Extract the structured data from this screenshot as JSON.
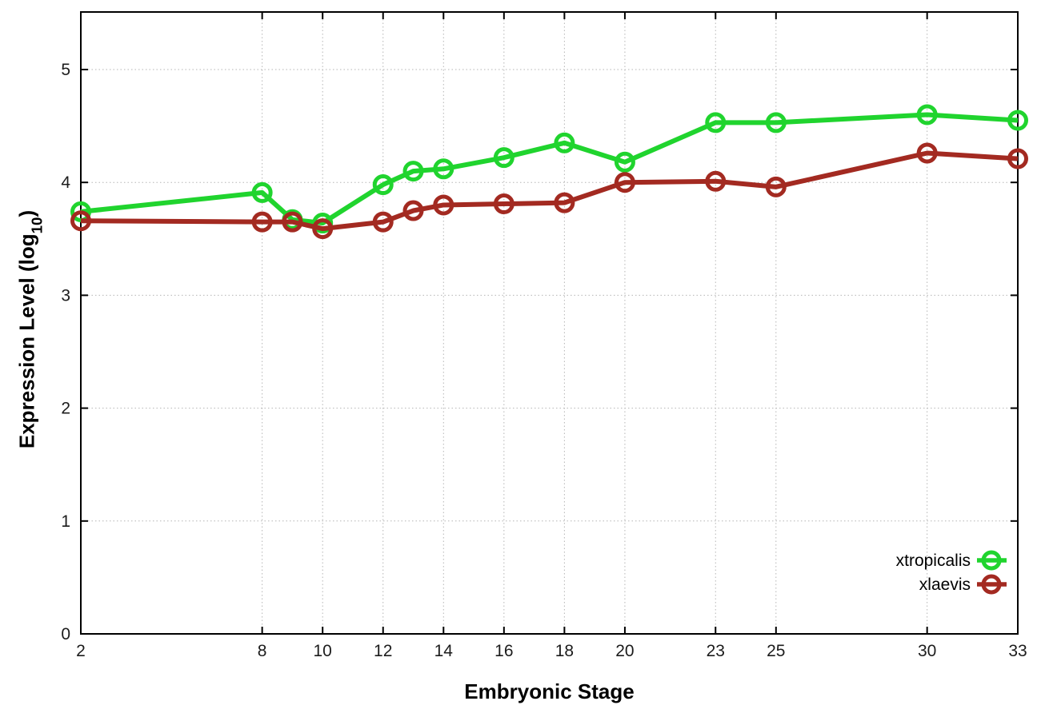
{
  "chart_data": {
    "type": "line",
    "title": "",
    "xlabel": "Embryonic Stage",
    "ylabel": "Expression Level (log10)",
    "x_ticks": [
      2,
      8,
      10,
      12,
      14,
      16,
      18,
      20,
      23,
      25,
      30,
      33
    ],
    "y_ticks": [
      0,
      1,
      2,
      3,
      4,
      5
    ],
    "xlim": [
      2,
      33
    ],
    "ylim": [
      0,
      5.51
    ],
    "grid": true,
    "legend_position": "inside-bottom-right",
    "x": [
      2,
      8,
      9,
      10,
      12,
      13,
      14,
      16,
      18,
      20,
      23,
      25,
      30,
      33
    ],
    "series": [
      {
        "name": "xtropicalis",
        "color": "#20d42e",
        "marker": "open-circle",
        "values": [
          3.74,
          3.91,
          3.67,
          3.64,
          3.98,
          4.1,
          4.12,
          4.22,
          4.35,
          4.18,
          4.53,
          4.53,
          4.6,
          4.55
        ]
      },
      {
        "name": "xlaevis",
        "color": "#a32a21",
        "marker": "open-circle",
        "values": [
          3.66,
          3.65,
          3.65,
          3.59,
          3.65,
          3.75,
          3.8,
          3.81,
          3.82,
          4.0,
          4.01,
          3.96,
          4.26,
          4.21
        ]
      }
    ]
  },
  "labels": {
    "xlabel": "Embryonic Stage",
    "ylabel_prefix": "Expression Level (log",
    "ylabel_sub": "10",
    "ylabel_suffix": ")"
  },
  "style_colors": {
    "grid": "#b5b5b5",
    "axis": "#000000",
    "tick_text": "#1c1c1c"
  }
}
